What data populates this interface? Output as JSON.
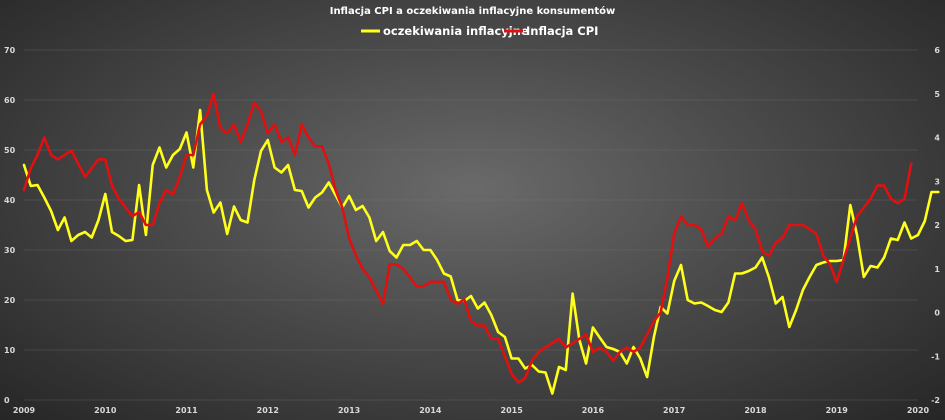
{
  "chart_data": {
    "type": "line",
    "title": "Inflacja CPI a oczekiwania inflacyjne konsumentów",
    "legend_position": "top-center",
    "grid": true,
    "x_ticks": [
      "2009",
      "2010",
      "2011",
      "2012",
      "2013",
      "2014",
      "2015",
      "2016",
      "2017",
      "2018",
      "2019",
      "2020"
    ],
    "x_range": [
      "2009-01",
      "2020-01"
    ],
    "y_left": {
      "ticks": [
        "0",
        "10",
        "20",
        "30",
        "40",
        "50",
        "60",
        "70"
      ],
      "range": [
        0,
        70
      ]
    },
    "y_right": {
      "ticks": [
        "-2",
        "-1",
        "0",
        "1",
        "2",
        "3",
        "4",
        "5",
        "6"
      ],
      "range": [
        -2,
        6
      ]
    },
    "series": [
      {
        "name": "oczekiwania inflacyjne",
        "axis": "left",
        "color": "#ffff1a",
        "points": [
          [
            "2009-01",
            47
          ],
          [
            "2009-02",
            42.8
          ],
          [
            "2009-03",
            43
          ],
          [
            "2009-04",
            40.5
          ],
          [
            "2009-05",
            37.8
          ],
          [
            "2009-06",
            34
          ],
          [
            "2009-07",
            36.5
          ],
          [
            "2009-08",
            31.8
          ],
          [
            "2009-09",
            33
          ],
          [
            "2009-10",
            33.6
          ],
          [
            "2009-11",
            32.5
          ],
          [
            "2009-12",
            36
          ],
          [
            "2010-01",
            41.2
          ],
          [
            "2010-02",
            33.6
          ],
          [
            "2010-03",
            32.8
          ],
          [
            "2010-04",
            31.8
          ],
          [
            "2010-05",
            32
          ],
          [
            "2010-06",
            43
          ],
          [
            "2010-07",
            33
          ],
          [
            "2010-08",
            47
          ],
          [
            "2010-09",
            50.5
          ],
          [
            "2010-10",
            46.5
          ],
          [
            "2010-11",
            49
          ],
          [
            "2010-12",
            50.2
          ],
          [
            "2011-01",
            53.5
          ],
          [
            "2011-02",
            46.5
          ],
          [
            "2011-03",
            58
          ],
          [
            "2011-04",
            42
          ],
          [
            "2011-05",
            37.5
          ],
          [
            "2011-06",
            39.5
          ],
          [
            "2011-07",
            33.2
          ],
          [
            "2011-08",
            38.7
          ],
          [
            "2011-09",
            36
          ],
          [
            "2011-10",
            35.5
          ],
          [
            "2011-11",
            44
          ],
          [
            "2011-12",
            49.8
          ],
          [
            "2012-01",
            52
          ],
          [
            "2012-02",
            46.5
          ],
          [
            "2012-03",
            45.5
          ],
          [
            "2012-04",
            47
          ],
          [
            "2012-05",
            42
          ],
          [
            "2012-06",
            41.8
          ],
          [
            "2012-07",
            38.5
          ],
          [
            "2012-08",
            40.5
          ],
          [
            "2012-09",
            41.5
          ],
          [
            "2012-10",
            43.5
          ],
          [
            "2012-11",
            41
          ],
          [
            "2012-12",
            38.5
          ],
          [
            "2013-01",
            40.8
          ],
          [
            "2013-02",
            38
          ],
          [
            "2013-03",
            38.8
          ],
          [
            "2013-04",
            36.5
          ],
          [
            "2013-05",
            31.8
          ],
          [
            "2013-06",
            33.6
          ],
          [
            "2013-07",
            29.8
          ],
          [
            "2013-08",
            28.5
          ],
          [
            "2013-09",
            31
          ],
          [
            "2013-10",
            31
          ],
          [
            "2013-11",
            31.8
          ],
          [
            "2013-12",
            30
          ],
          [
            "2014-01",
            30
          ],
          [
            "2014-02",
            28
          ],
          [
            "2014-03",
            25.3
          ],
          [
            "2014-04",
            24.7
          ],
          [
            "2014-05",
            20
          ],
          [
            "2014-06",
            19.8
          ],
          [
            "2014-07",
            20.8
          ],
          [
            "2014-08",
            18.3
          ],
          [
            "2014-09",
            19.5
          ],
          [
            "2014-10",
            17
          ],
          [
            "2014-11",
            13.6
          ],
          [
            "2014-12",
            12.6
          ],
          [
            "2015-01",
            8.3
          ],
          [
            "2015-02",
            8.3
          ],
          [
            "2015-03",
            6.3
          ],
          [
            "2015-04",
            7
          ],
          [
            "2015-05",
            5.7
          ],
          [
            "2015-06",
            5.5
          ],
          [
            "2015-07",
            1.3
          ],
          [
            "2015-08",
            6.6
          ],
          [
            "2015-09",
            6
          ],
          [
            "2015-10",
            21.3
          ],
          [
            "2015-11",
            12
          ],
          [
            "2015-12",
            7.3
          ],
          [
            "2016-01",
            14.5
          ],
          [
            "2016-02",
            12.5
          ],
          [
            "2016-03",
            10.6
          ],
          [
            "2016-04",
            10.2
          ],
          [
            "2016-05",
            9.6
          ],
          [
            "2016-06",
            7.3
          ],
          [
            "2016-07",
            10.6
          ],
          [
            "2016-08",
            8.3
          ],
          [
            "2016-09",
            4.6
          ],
          [
            "2016-10",
            12.6
          ],
          [
            "2016-11",
            18.6
          ],
          [
            "2016-12",
            17.3
          ],
          [
            "2017-01",
            23.8
          ],
          [
            "2017-02",
            27
          ],
          [
            "2017-03",
            20
          ],
          [
            "2017-04",
            19.3
          ],
          [
            "2017-05",
            19.5
          ],
          [
            "2017-06",
            18.8
          ],
          [
            "2017-07",
            18
          ],
          [
            "2017-08",
            17.6
          ],
          [
            "2017-09",
            19.5
          ],
          [
            "2017-10",
            25.3
          ],
          [
            "2017-11",
            25.3
          ],
          [
            "2017-12",
            25.8
          ],
          [
            "2018-01",
            26.5
          ],
          [
            "2018-02",
            28.5
          ],
          [
            "2018-03",
            24.5
          ],
          [
            "2018-04",
            19.3
          ],
          [
            "2018-05",
            20.6
          ],
          [
            "2018-06",
            14.6
          ],
          [
            "2018-07",
            18
          ],
          [
            "2018-08",
            22
          ],
          [
            "2018-09",
            24.6
          ],
          [
            "2018-10",
            27
          ],
          [
            "2018-11",
            27.5
          ],
          [
            "2018-12",
            27.8
          ],
          [
            "2019-01",
            27.8
          ],
          [
            "2019-02",
            28
          ],
          [
            "2019-03",
            39
          ],
          [
            "2019-04",
            33
          ],
          [
            "2019-05",
            24.6
          ],
          [
            "2019-06",
            26.8
          ],
          [
            "2019-07",
            26.5
          ],
          [
            "2019-08",
            28.5
          ],
          [
            "2019-09",
            32.3
          ],
          [
            "2019-10",
            32
          ],
          [
            "2019-11",
            35.5
          ],
          [
            "2019-12",
            32.3
          ],
          [
            "2020-01",
            33
          ],
          [
            "2020-02",
            35.8
          ],
          [
            "2020-03",
            41.6
          ],
          [
            "2020-04",
            41.6
          ]
        ]
      },
      {
        "name": "Inflacja CPI",
        "axis": "right",
        "color": "#e01010",
        "points": [
          [
            "2009-01",
            2.8
          ],
          [
            "2009-02",
            3.3
          ],
          [
            "2009-03",
            3.6
          ],
          [
            "2009-04",
            4
          ],
          [
            "2009-05",
            3.6
          ],
          [
            "2009-06",
            3.5
          ],
          [
            "2009-07",
            3.6
          ],
          [
            "2009-08",
            3.7
          ],
          [
            "2009-09",
            3.4
          ],
          [
            "2009-10",
            3.1
          ],
          [
            "2009-11",
            3.3
          ],
          [
            "2009-12",
            3.5
          ],
          [
            "2010-01",
            3.5
          ],
          [
            "2010-02",
            2.9
          ],
          [
            "2010-03",
            2.6
          ],
          [
            "2010-04",
            2.4
          ],
          [
            "2010-05",
            2.2
          ],
          [
            "2010-06",
            2.3
          ],
          [
            "2010-07",
            2
          ],
          [
            "2010-08",
            2
          ],
          [
            "2010-09",
            2.5
          ],
          [
            "2010-10",
            2.8
          ],
          [
            "2010-11",
            2.7
          ],
          [
            "2010-12",
            3.1
          ],
          [
            "2011-01",
            3.6
          ],
          [
            "2011-02",
            3.6
          ],
          [
            "2011-03",
            4.3
          ],
          [
            "2011-04",
            4.5
          ],
          [
            "2011-05",
            5
          ],
          [
            "2011-06",
            4.2
          ],
          [
            "2011-07",
            4.1
          ],
          [
            "2011-08",
            4.3
          ],
          [
            "2011-09",
            3.9
          ],
          [
            "2011-10",
            4.3
          ],
          [
            "2011-11",
            4.8
          ],
          [
            "2011-12",
            4.6
          ],
          [
            "2012-01",
            4.1
          ],
          [
            "2012-02",
            4.3
          ],
          [
            "2012-03",
            3.9
          ],
          [
            "2012-04",
            4
          ],
          [
            "2012-05",
            3.6
          ],
          [
            "2012-06",
            4.3
          ],
          [
            "2012-07",
            4
          ],
          [
            "2012-08",
            3.8
          ],
          [
            "2012-09",
            3.8
          ],
          [
            "2012-10",
            3.4
          ],
          [
            "2012-11",
            2.8
          ],
          [
            "2012-12",
            2.4
          ],
          [
            "2013-01",
            1.7
          ],
          [
            "2013-02",
            1.3
          ],
          [
            "2013-03",
            1
          ],
          [
            "2013-04",
            0.8
          ],
          [
            "2013-05",
            0.5
          ],
          [
            "2013-06",
            0.2
          ],
          [
            "2013-07",
            1.1
          ],
          [
            "2013-08",
            1.1
          ],
          [
            "2013-09",
            1
          ],
          [
            "2013-10",
            0.8
          ],
          [
            "2013-11",
            0.6
          ],
          [
            "2013-12",
            0.6
          ],
          [
            "2014-01",
            0.7
          ],
          [
            "2014-02",
            0.7
          ],
          [
            "2014-03",
            0.7
          ],
          [
            "2014-04",
            0.3
          ],
          [
            "2014-05",
            0.2
          ],
          [
            "2014-06",
            0.3
          ],
          [
            "2014-07",
            -0.2
          ],
          [
            "2014-08",
            -0.3
          ],
          [
            "2014-09",
            -0.3
          ],
          [
            "2014-10",
            -0.6
          ],
          [
            "2014-11",
            -0.6
          ],
          [
            "2014-12",
            -1
          ],
          [
            "2015-01",
            -1.4
          ],
          [
            "2015-02",
            -1.6
          ],
          [
            "2015-03",
            -1.5
          ],
          [
            "2015-04",
            -1.1
          ],
          [
            "2015-05",
            -0.9
          ],
          [
            "2015-06",
            -0.8
          ],
          [
            "2015-07",
            -0.7
          ],
          [
            "2015-08",
            -0.6
          ],
          [
            "2015-09",
            -0.8
          ],
          [
            "2015-10",
            -0.7
          ],
          [
            "2015-11",
            -0.6
          ],
          [
            "2015-12",
            -0.5
          ],
          [
            "2016-01",
            -0.9
          ],
          [
            "2016-02",
            -0.8
          ],
          [
            "2016-03",
            -0.9
          ],
          [
            "2016-04",
            -1.1
          ],
          [
            "2016-05",
            -0.9
          ],
          [
            "2016-06",
            -0.8
          ],
          [
            "2016-07",
            -0.9
          ],
          [
            "2016-08",
            -0.8
          ],
          [
            "2016-09",
            -0.5
          ],
          [
            "2016-10",
            -0.2
          ],
          [
            "2016-11",
            0
          ],
          [
            "2016-12",
            0.8
          ],
          [
            "2017-01",
            1.8
          ],
          [
            "2017-02",
            2.2
          ],
          [
            "2017-03",
            2
          ],
          [
            "2017-04",
            2
          ],
          [
            "2017-05",
            1.9
          ],
          [
            "2017-06",
            1.5
          ],
          [
            "2017-07",
            1.7
          ],
          [
            "2017-08",
            1.8
          ],
          [
            "2017-09",
            2.2
          ],
          [
            "2017-10",
            2.1
          ],
          [
            "2017-11",
            2.5
          ],
          [
            "2017-12",
            2.1
          ],
          [
            "2018-01",
            1.9
          ],
          [
            "2018-02",
            1.4
          ],
          [
            "2018-03",
            1.3
          ],
          [
            "2018-04",
            1.6
          ],
          [
            "2018-05",
            1.7
          ],
          [
            "2018-06",
            2
          ],
          [
            "2018-07",
            2
          ],
          [
            "2018-08",
            2
          ],
          [
            "2018-09",
            1.9
          ],
          [
            "2018-10",
            1.8
          ],
          [
            "2018-11",
            1.3
          ],
          [
            "2018-12",
            1.1
          ],
          [
            "2019-01",
            0.7
          ],
          [
            "2019-02",
            1.2
          ],
          [
            "2019-03",
            1.7
          ],
          [
            "2019-04",
            2.2
          ],
          [
            "2019-05",
            2.4
          ],
          [
            "2019-06",
            2.6
          ],
          [
            "2019-07",
            2.9
          ],
          [
            "2019-08",
            2.9
          ],
          [
            "2019-09",
            2.6
          ],
          [
            "2019-10",
            2.5
          ],
          [
            "2019-11",
            2.6
          ],
          [
            "2019-12",
            3.4
          ]
        ]
      }
    ]
  }
}
